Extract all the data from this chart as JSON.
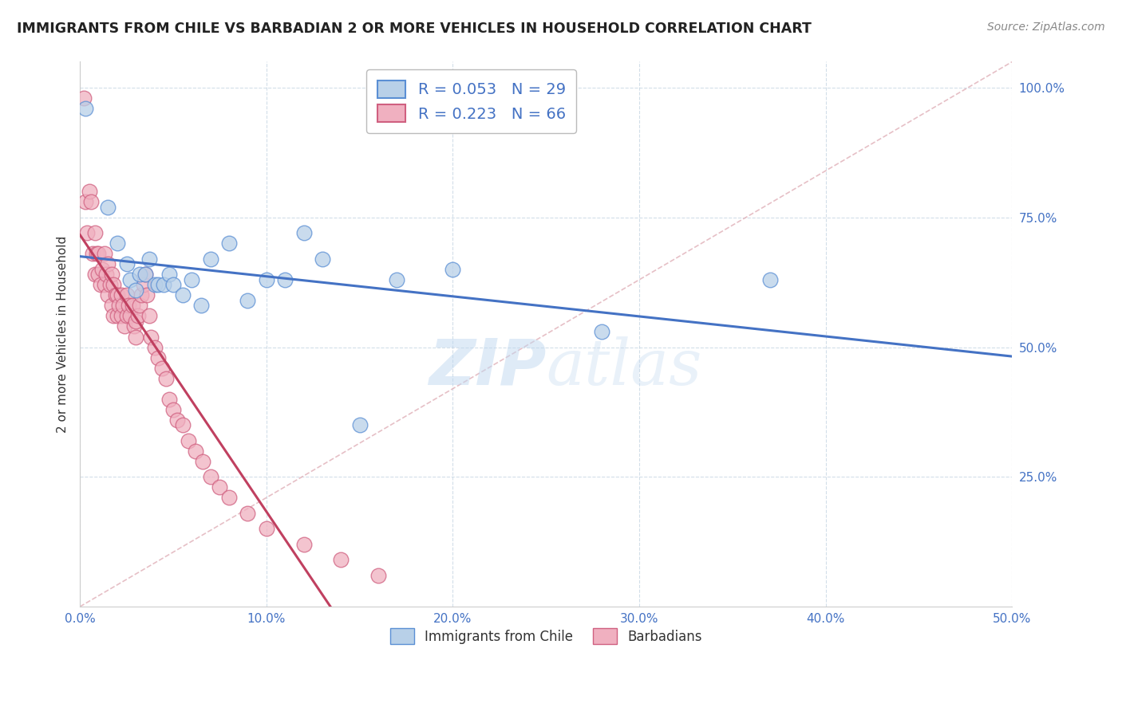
{
  "title": "IMMIGRANTS FROM CHILE VS BARBADIAN 2 OR MORE VEHICLES IN HOUSEHOLD CORRELATION CHART",
  "source": "Source: ZipAtlas.com",
  "ylabel": "2 or more Vehicles in Household",
  "xlim": [
    0.0,
    0.5
  ],
  "ylim": [
    0.0,
    1.05
  ],
  "xtick_vals": [
    0.0,
    0.1,
    0.2,
    0.3,
    0.4,
    0.5
  ],
  "xtick_labels": [
    "0.0%",
    "10.0%",
    "20.0%",
    "30.0%",
    "40.0%",
    "50.0%"
  ],
  "ytick_vals": [
    0.25,
    0.5,
    0.75,
    1.0
  ],
  "ytick_labels": [
    "25.0%",
    "50.0%",
    "75.0%",
    "100.0%"
  ],
  "blue_fill": "#b8d0e8",
  "blue_edge": "#5b8fd4",
  "pink_fill": "#f0b0c0",
  "pink_edge": "#d06080",
  "trend_blue": "#4472c4",
  "trend_pink": "#c04060",
  "diagonal_color": "#e0b0b8",
  "R_blue": 0.053,
  "N_blue": 29,
  "R_pink": 0.223,
  "N_pink": 66,
  "label_blue": "Immigrants from Chile",
  "label_pink": "Barbadians",
  "blue_scatter_x": [
    0.003,
    0.015,
    0.02,
    0.025,
    0.027,
    0.03,
    0.032,
    0.035,
    0.037,
    0.04,
    0.042,
    0.045,
    0.048,
    0.05,
    0.055,
    0.06,
    0.065,
    0.07,
    0.08,
    0.09,
    0.1,
    0.11,
    0.12,
    0.13,
    0.15,
    0.17,
    0.2,
    0.28,
    0.37
  ],
  "blue_scatter_y": [
    0.96,
    0.77,
    0.7,
    0.66,
    0.63,
    0.61,
    0.64,
    0.64,
    0.67,
    0.62,
    0.62,
    0.62,
    0.64,
    0.62,
    0.6,
    0.63,
    0.58,
    0.67,
    0.7,
    0.59,
    0.63,
    0.63,
    0.72,
    0.67,
    0.35,
    0.63,
    0.65,
    0.53,
    0.63
  ],
  "pink_scatter_x": [
    0.002,
    0.003,
    0.004,
    0.005,
    0.006,
    0.007,
    0.008,
    0.008,
    0.009,
    0.01,
    0.01,
    0.011,
    0.012,
    0.013,
    0.013,
    0.014,
    0.015,
    0.015,
    0.016,
    0.017,
    0.017,
    0.018,
    0.018,
    0.019,
    0.02,
    0.02,
    0.021,
    0.022,
    0.022,
    0.023,
    0.024,
    0.025,
    0.025,
    0.026,
    0.027,
    0.028,
    0.029,
    0.03,
    0.03,
    0.031,
    0.032,
    0.033,
    0.034,
    0.035,
    0.036,
    0.037,
    0.038,
    0.04,
    0.042,
    0.044,
    0.046,
    0.048,
    0.05,
    0.052,
    0.055,
    0.058,
    0.062,
    0.066,
    0.07,
    0.075,
    0.08,
    0.09,
    0.1,
    0.12,
    0.14,
    0.16
  ],
  "pink_scatter_y": [
    0.98,
    0.78,
    0.72,
    0.8,
    0.78,
    0.68,
    0.72,
    0.64,
    0.68,
    0.68,
    0.64,
    0.62,
    0.65,
    0.68,
    0.62,
    0.64,
    0.66,
    0.6,
    0.62,
    0.64,
    0.58,
    0.62,
    0.56,
    0.6,
    0.6,
    0.56,
    0.58,
    0.6,
    0.56,
    0.58,
    0.54,
    0.56,
    0.6,
    0.58,
    0.56,
    0.58,
    0.54,
    0.55,
    0.52,
    0.56,
    0.58,
    0.6,
    0.62,
    0.64,
    0.6,
    0.56,
    0.52,
    0.5,
    0.48,
    0.46,
    0.44,
    0.4,
    0.38,
    0.36,
    0.35,
    0.32,
    0.3,
    0.28,
    0.25,
    0.23,
    0.21,
    0.18,
    0.15,
    0.12,
    0.09,
    0.06
  ]
}
